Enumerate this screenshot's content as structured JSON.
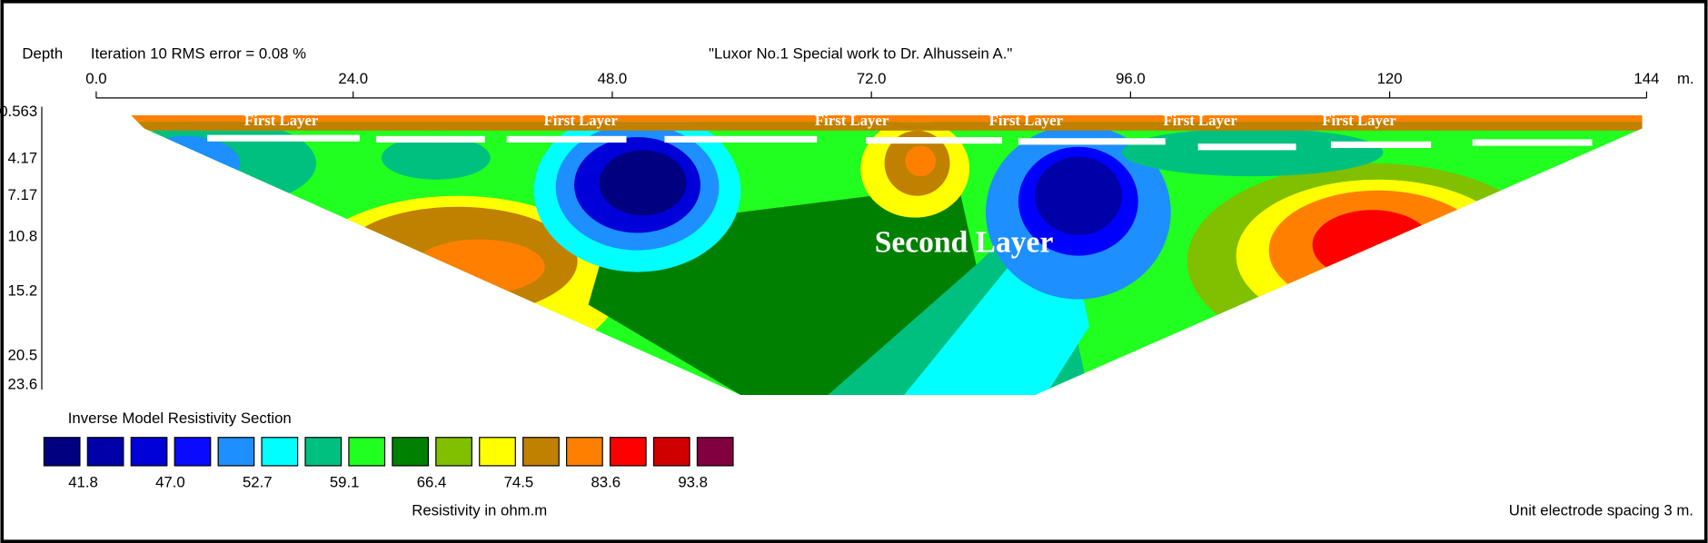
{
  "header": {
    "depth_label": "Depth",
    "iteration": "Iteration 10 RMS error = 0.08 %",
    "title": "\"Luxor No.1 Special work to Dr. Alhussein A.\""
  },
  "x_axis": {
    "labels": [
      "0.0",
      "24.0",
      "48.0",
      "72.0",
      "96.0",
      "120",
      "144"
    ],
    "unit": "m."
  },
  "depth_axis": {
    "labels": [
      "0.563",
      "4.17",
      "7.17",
      "10.8",
      "15.2",
      "20.5",
      "23.6"
    ]
  },
  "section": {
    "layer_labels": [
      "First Layer",
      "First Layer",
      "First Layer",
      "First Layer",
      "First Layer",
      "First Layer"
    ],
    "second_layer": "Second Layer"
  },
  "legend": {
    "title": "Inverse Model Resistivity Section",
    "labels": [
      "41.8",
      "47.0",
      "52.7",
      "59.1",
      "66.4",
      "74.5",
      "83.6",
      "93.8"
    ],
    "unit": "Resistivity in ohm.m",
    "spacing": "Unit electrode spacing 3 m."
  }
}
